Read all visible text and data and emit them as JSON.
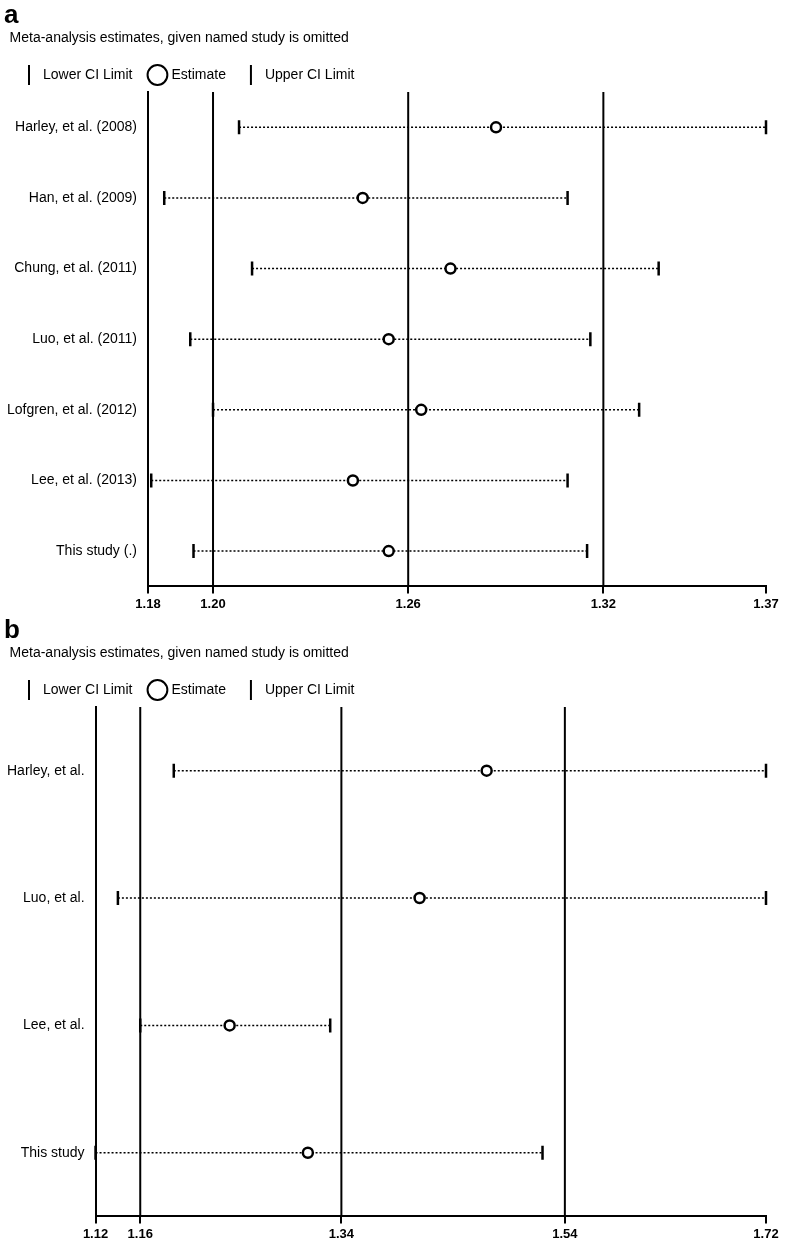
{
  "chart_data": [
    {
      "type": "scatter",
      "orientation": "horizontal",
      "title": "a",
      "legend_title": "Meta-analysis estimates, given named study is omitted",
      "legend": "top left",
      "line_style": "dotted",
      "marker": "circle",
      "annotations": [
        "Lower CI Limit",
        "Upper CI Limit"
      ],
      "categories": [
        "Harley, et al. (2008)",
        "Han, et al. (2009)",
        "Chung, et al. (2011)",
        "Luo, et al. (2011)",
        "Lofgren, et al. (2012)",
        "Lee, et al. (2013)",
        "This study (.)"
      ],
      "series": [
        {
          "name": "Estimate",
          "color": "#000000",
          "values": [
            1.287,
            1.246,
            1.273,
            1.254,
            1.264,
            1.243,
            1.254
          ],
          "errors": [
            [
              1.208,
              1.37
            ],
            [
              1.185,
              1.309
            ],
            [
              1.212,
              1.337
            ],
            [
              1.193,
              1.316
            ],
            [
              1.2,
              1.331
            ],
            [
              1.181,
              1.309
            ],
            [
              1.194,
              1.315
            ]
          ]
        }
      ],
      "xlim": [
        1.18,
        1.37
      ],
      "xticks": [
        1.18,
        {
          "value": 1.2,
          "label": "1.20"
        },
        1.26,
        1.32,
        1.37
      ],
      "ref_lines": [
        {
          "axis": "x",
          "value": 1.2
        },
        {
          "axis": "x",
          "value": 1.26
        },
        {
          "axis": "x",
          "value": 1.32
        }
      ]
    },
    {
      "type": "scatter",
      "orientation": "horizontal",
      "title": "b",
      "legend_title": "Meta-analysis estimates, given named study is omitted",
      "legend": "top left",
      "line_style": "dotted",
      "marker": "circle",
      "annotations": [
        "Lower CI Limit",
        "Upper CI Limit"
      ],
      "categories": [
        "Harley, et al.",
        "Luo, et al.",
        "Lee, et al.",
        "This study"
      ],
      "series": [
        {
          "name": "Estimate",
          "color": "#000000",
          "values": [
            1.47,
            1.41,
            1.24,
            1.31
          ],
          "errors": [
            [
              1.19,
              1.72
            ],
            [
              1.14,
              1.72
            ],
            [
              1.16,
              1.33
            ],
            [
              1.12,
              1.52
            ]
          ]
        }
      ],
      "xlim": [
        1.12,
        1.72
      ],
      "xticks": [
        1.12,
        1.16,
        1.34,
        1.54,
        1.72
      ],
      "ref_lines": [
        {
          "axis": "x",
          "value": 1.16
        },
        {
          "axis": "x",
          "value": 1.34
        },
        {
          "axis": "x",
          "value": 1.54
        }
      ]
    }
  ]
}
